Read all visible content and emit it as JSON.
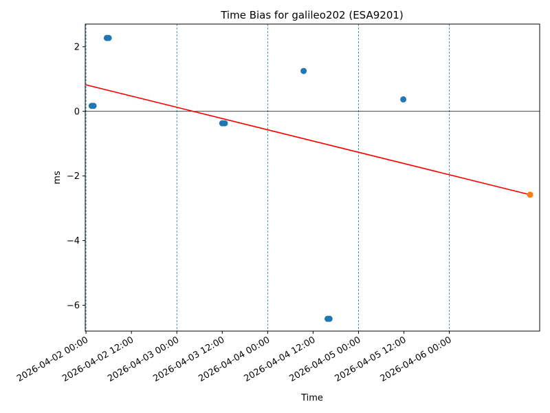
{
  "chart_data": {
    "type": "scatter",
    "title": "Time Bias for galileo202 (ESA9201)",
    "xlabel": "Time",
    "ylabel": "ms",
    "xlim": [
      "2026-04-01T23:48",
      "2026-04-06T23:52"
    ],
    "ylim": [
      -6.8,
      2.7
    ],
    "xticks": [
      "2026-04-02 00:00",
      "2026-04-02 12:00",
      "2026-04-03 00:00",
      "2026-04-03 12:00",
      "2026-04-04 00:00",
      "2026-04-04 12:00",
      "2026-04-05 00:00",
      "2026-04-05 12:00",
      "2026-04-06 00:00"
    ],
    "yticks": [
      2,
      0,
      -2,
      -4,
      -6
    ],
    "ytick_labels": [
      "2",
      "0",
      "−2",
      "−4",
      "−6"
    ],
    "vertical_gridlines": [
      "2026-04-02T00:00",
      "2026-04-03T00:00",
      "2026-04-04T00:00",
      "2026-04-05T00:00",
      "2026-04-06T00:00"
    ],
    "zero_line": 0,
    "grid": false,
    "series": [
      {
        "kind": "scatter",
        "color": "#1f77b4",
        "points": [
          {
            "x": "2026-04-02T01:30",
            "y": 0.17
          },
          {
            "x": "2026-04-02T02:00",
            "y": 0.17
          },
          {
            "x": "2026-04-02T05:30",
            "y": 2.27
          },
          {
            "x": "2026-04-02T06:00",
            "y": 2.27
          },
          {
            "x": "2026-04-03T12:00",
            "y": -0.37
          },
          {
            "x": "2026-04-03T12:40",
            "y": -0.37
          },
          {
            "x": "2026-04-04T09:30",
            "y": 1.25
          },
          {
            "x": "2026-04-04T15:50",
            "y": -6.42
          },
          {
            "x": "2026-04-04T16:20",
            "y": -6.42
          },
          {
            "x": "2026-04-05T11:50",
            "y": 0.37
          }
        ]
      },
      {
        "kind": "line",
        "color": "#ff0000",
        "points": [
          {
            "x": "2026-04-02T00:00",
            "y": 0.82
          },
          {
            "x": "2026-04-06T21:20",
            "y": -2.58
          }
        ]
      },
      {
        "kind": "scatter",
        "color": "#ff7f0e",
        "points": [
          {
            "x": "2026-04-06T21:20",
            "y": -2.58
          }
        ]
      }
    ]
  }
}
